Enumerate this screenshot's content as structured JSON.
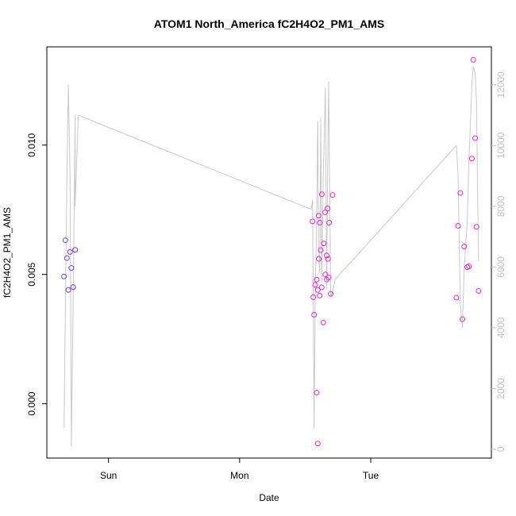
{
  "chart_data": {
    "type": "scatter",
    "title": "ATOM1 North_America fC2H4O2_PM1_AMS",
    "xlabel": "Date",
    "ylabel": "fC2H4O2_PM1_AMS",
    "y2label": "",
    "x_ticks": [
      {
        "label": "Sun",
        "t": 1.0
      },
      {
        "label": "Mon",
        "t": 2.0
      },
      {
        "label": "Tue",
        "t": 3.0
      }
    ],
    "y_ticks": [
      {
        "label": "0.000",
        "v": 0.0
      },
      {
        "label": "0.005",
        "v": 0.005
      },
      {
        "label": "0.010",
        "v": 0.01
      }
    ],
    "y2_ticks": [
      {
        "label": "0",
        "v": 0
      },
      {
        "label": "2000",
        "v": 2000
      },
      {
        "label": "4000",
        "v": 4000
      },
      {
        "label": "6000",
        "v": 6000
      },
      {
        "label": "8000",
        "v": 8000
      },
      {
        "label": "10000",
        "v": 10000
      },
      {
        "label": "12000",
        "v": 12000
      }
    ],
    "xlim": [
      0.53,
      3.92
    ],
    "ylim": [
      -0.0021,
      0.0138
    ],
    "y2lim": [
      -290,
      13250
    ],
    "grid": false,
    "colors": {
      "early_points": "#7f3bdc",
      "late_points": "#e62ad6",
      "line": "#c8c8c8",
      "axis": "#000000",
      "right_axis": "#bfbfbf"
    },
    "series": [
      {
        "color": "#7f3bdc",
        "x": [
          0.661,
          0.672,
          0.683,
          0.694,
          0.707,
          0.717,
          0.731,
          0.746
        ],
        "y": [
          0.00492,
          0.00632,
          0.00563,
          0.0044,
          0.00587,
          0.00525,
          0.00451,
          0.00595
        ]
      },
      {
        "color": "#e62ad6",
        "x": [
          2.556,
          2.562,
          2.568,
          2.576,
          2.588,
          2.596,
          2.602,
          2.611,
          2.619,
          2.626,
          2.638,
          2.654,
          2.664,
          2.671,
          2.679,
          2.695,
          2.709,
          2.588,
          2.596,
          2.604,
          2.612,
          2.627,
          2.642,
          2.652,
          2.664,
          2.674,
          2.683
        ],
        "y": [
          0.00705,
          0.00412,
          0.00344,
          0.0046,
          0.00043,
          -0.00154,
          0.00727,
          0.00418,
          0.00594,
          0.0045,
          0.00314,
          0.005,
          0.00573,
          0.00755,
          0.00488,
          0.00425,
          0.00807,
          0.0048,
          0.0044,
          0.0056,
          0.007,
          0.0081,
          0.0062,
          0.0074,
          0.0048,
          0.0056,
          0.007
        ]
      },
      {
        "color": "#e62ad6",
        "x": [
          3.653,
          3.666,
          3.683,
          3.699,
          3.713,
          3.736,
          3.749,
          3.771,
          3.782,
          3.796,
          3.806,
          3.822
        ],
        "y": [
          0.0041,
          0.00688,
          0.00815,
          0.00327,
          0.00608,
          0.00528,
          0.00531,
          0.00948,
          0.0133,
          0.01027,
          0.00684,
          0.00436
        ]
      }
    ],
    "line_series": {
      "color": "#c8c8c8",
      "x": [
        0.661,
        0.683,
        0.694,
        0.707,
        0.717,
        0.731,
        0.746,
        0.746,
        0.77,
        2.546,
        2.556,
        2.562,
        2.568,
        2.576,
        2.588,
        2.596,
        2.602,
        2.611,
        2.619,
        2.626,
        2.638,
        2.654,
        2.664,
        2.671,
        2.679,
        2.695,
        2.709,
        2.73,
        3.653,
        3.666,
        3.683,
        3.699,
        3.713,
        3.736,
        3.749,
        3.771,
        3.782,
        3.796,
        3.806,
        3.822
      ],
      "y": [
        700,
        9000,
        12000,
        9000,
        100,
        5000,
        11000,
        8000,
        11000,
        7900,
        8200,
        4800,
        700,
        4900,
        7800,
        10800,
        6600,
        5800,
        10900,
        5500,
        9000,
        11900,
        5300,
        9000,
        12100,
        5000,
        5200,
        5600,
        10000,
        9000,
        4800,
        4000,
        6000,
        7500,
        9500,
        12000,
        12600,
        12400,
        11500,
        6200
      ]
    }
  }
}
